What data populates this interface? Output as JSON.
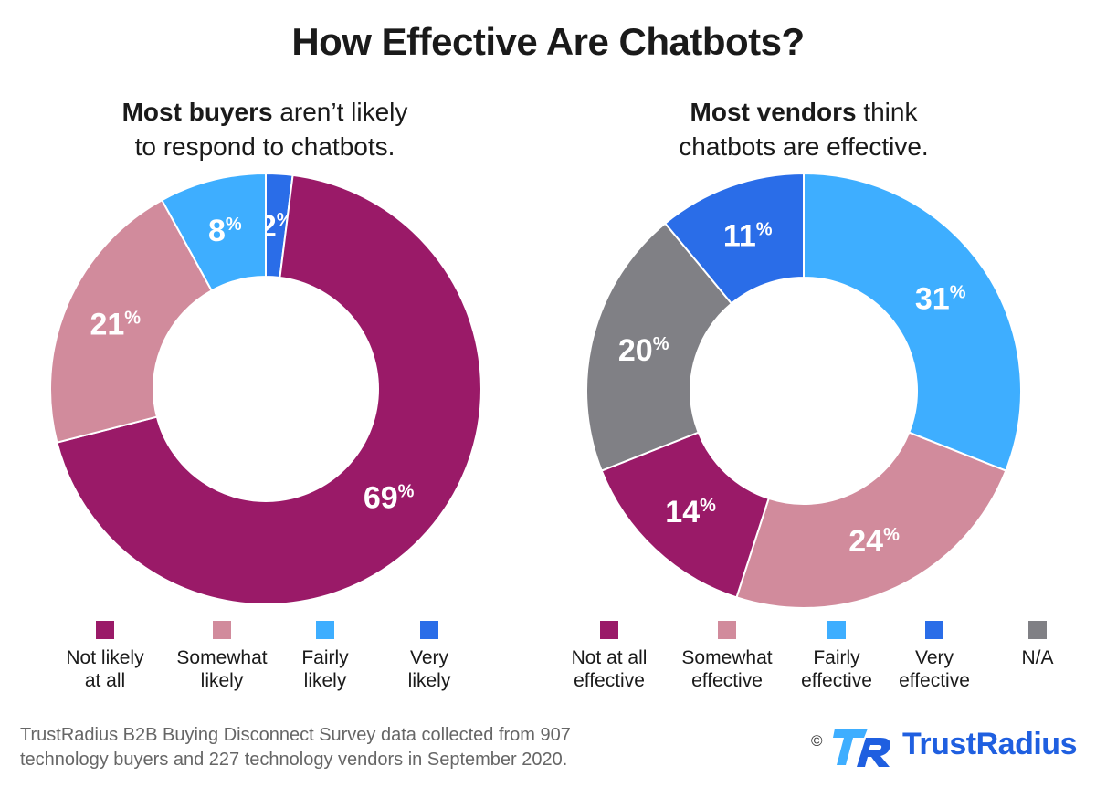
{
  "title": "How Effective Are Chatbots?",
  "footer": "TrustRadius B2B Buying Disconnect Survey data collected from 907\ntechnology buyers and 227 technology vendors in September 2020.",
  "copyright": "©",
  "brand": "TrustRadius",
  "chart_data": [
    {
      "type": "pie",
      "subtitle_bold": "Most buyers",
      "subtitle_rest": " aren’t likely\nto respond to chatbots.",
      "categories": [
        "Not likely\nat all",
        "Somewhat\nlikely",
        "Fairly\nlikely",
        "Very\nlikely"
      ],
      "values": [
        69,
        21,
        8,
        2
      ],
      "colors": [
        "#9a1a68",
        "#d18b9c",
        "#3eaeff",
        "#2a6de8"
      ],
      "labels": [
        "69",
        "21",
        "8",
        "2"
      ],
      "unit": "%",
      "order": [
        3,
        0,
        1,
        2
      ]
    },
    {
      "type": "pie",
      "subtitle_bold": "Most vendors",
      "subtitle_rest": " think\nchatbots are effective.",
      "categories": [
        "Not at all\neffective",
        "Somewhat\neffective",
        "Fairly\neffective",
        "Very\neffective",
        "N/A"
      ],
      "values": [
        14,
        24,
        31,
        11,
        20
      ],
      "colors": [
        "#9a1a68",
        "#d18b9c",
        "#3eaeff",
        "#2a6de8",
        "#808085"
      ],
      "labels": [
        "14",
        "24",
        "31",
        "11",
        "20"
      ],
      "unit": "%",
      "order": [
        2,
        1,
        0,
        4,
        3
      ]
    }
  ]
}
